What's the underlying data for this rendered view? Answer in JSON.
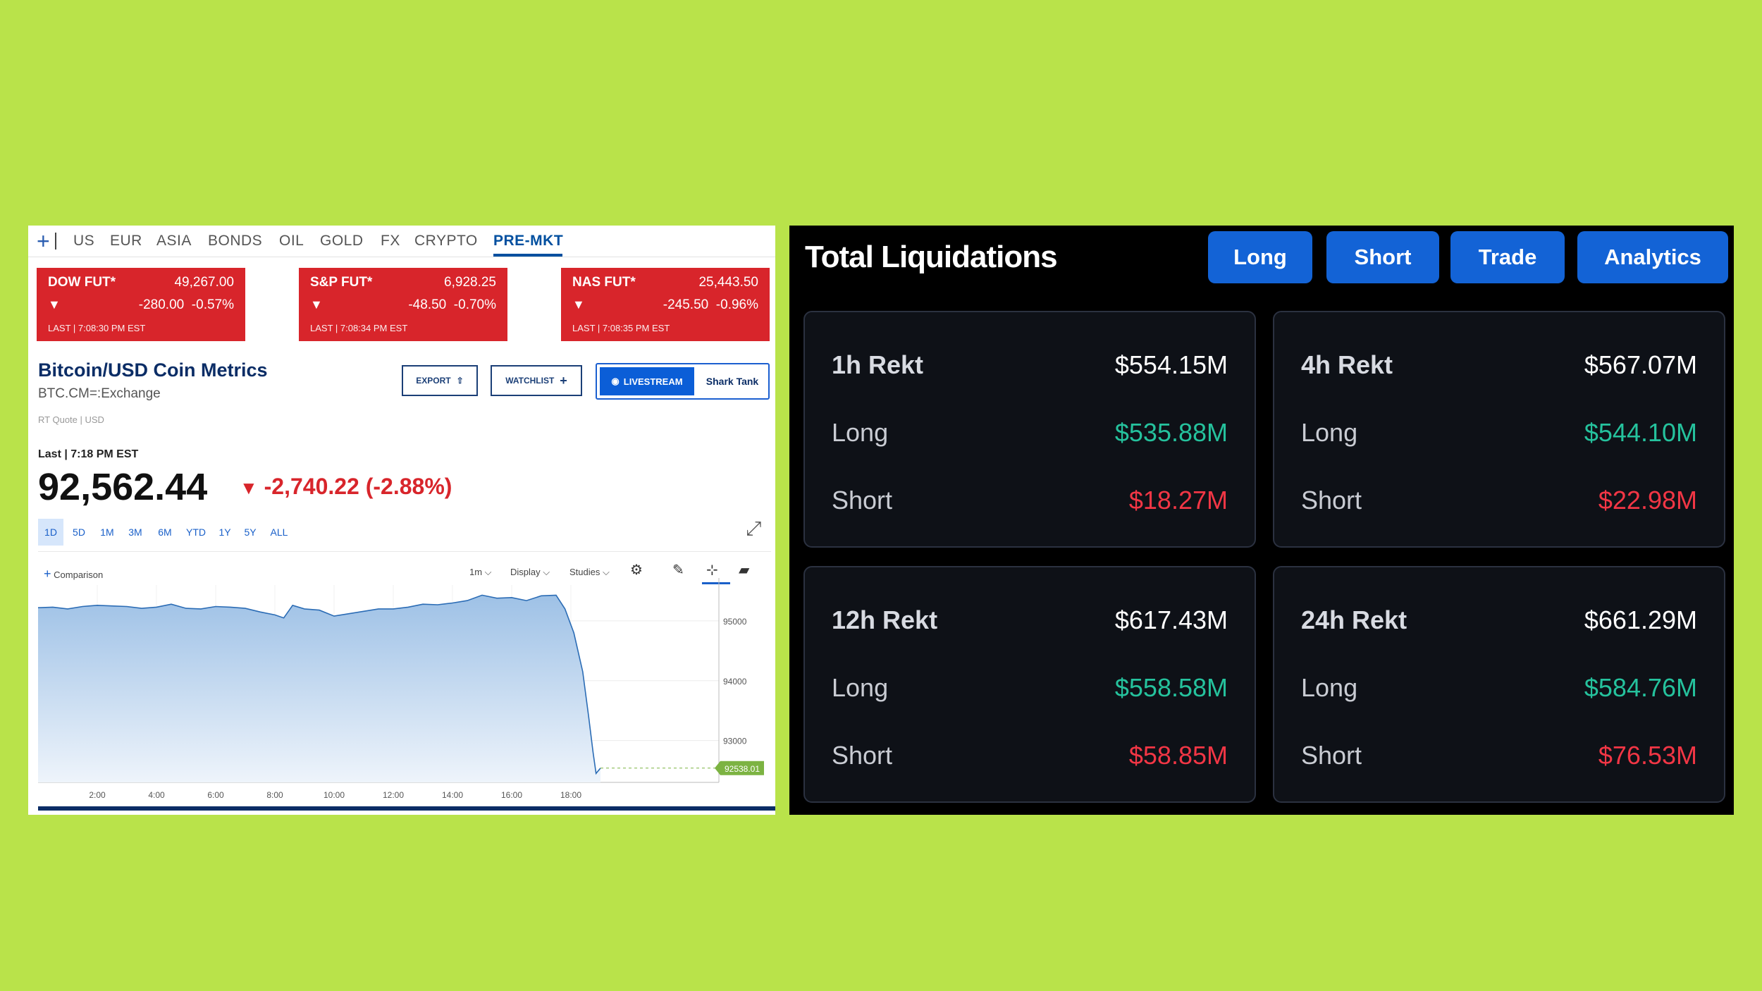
{
  "left": {
    "nav": {
      "items": [
        "US",
        "EUR",
        "ASIA",
        "BONDS",
        "OIL",
        "GOLD",
        "FX",
        "CRYPTO",
        "PRE-MKT"
      ],
      "active": "PRE-MKT"
    },
    "futures": [
      {
        "name": "DOW FUT*",
        "value": "49,267.00",
        "change": "-280.00",
        "pct": "-0.57%",
        "last": "LAST | 7:08:30 PM EST"
      },
      {
        "name": "S&P FUT*",
        "value": "6,928.25",
        "change": "-48.50",
        "pct": "-0.70%",
        "last": "LAST | 7:08:34 PM EST"
      },
      {
        "name": "NAS FUT*",
        "value": "25,443.50",
        "change": "-245.50",
        "pct": "-0.96%",
        "last": "LAST | 7:08:35 PM EST"
      }
    ],
    "quote": {
      "title": "Bitcoin/USD Coin Metrics",
      "symbol": "BTC.CM=:Exchange",
      "rt": "RT Quote | USD",
      "last_label": "Last | 7:18 PM EST",
      "price": "92,562.44",
      "change": "-2,740.22 (-2.88%)"
    },
    "buttons": {
      "export": "EXPORT",
      "watchlist": "WATCHLIST",
      "livestream": "LIVESTREAM",
      "shark": "Shark Tank"
    },
    "ranges": [
      "1D",
      "5D",
      "1M",
      "3M",
      "6M",
      "YTD",
      "1Y",
      "5Y",
      "ALL"
    ],
    "toolbar": {
      "comparison": "Comparison",
      "interval": "1m",
      "display": "Display",
      "studies": "Studies"
    },
    "colors": {
      "red": "#d8252b",
      "navy": "#0b2d66",
      "accent": "#1a60c9"
    }
  },
  "chart_data": {
    "type": "area",
    "x_ticks": [
      "2:00",
      "4:00",
      "6:00",
      "8:00",
      "10:00",
      "12:00",
      "14:00",
      "16:00",
      "18:00"
    ],
    "y_ticks": [
      "95000",
      "94000",
      "93000"
    ],
    "ylim": [
      92300,
      95600
    ],
    "last_label": "92538.01",
    "series": [
      {
        "values": [
          [
            0,
            95220
          ],
          [
            0.5,
            95230
          ],
          [
            1,
            95200
          ],
          [
            1.5,
            95240
          ],
          [
            2,
            95260
          ],
          [
            2.5,
            95250
          ],
          [
            3,
            95240
          ],
          [
            3.5,
            95210
          ],
          [
            4,
            95230
          ],
          [
            4.5,
            95280
          ],
          [
            5,
            95210
          ],
          [
            5.5,
            95200
          ],
          [
            6,
            95240
          ],
          [
            6.5,
            95230
          ],
          [
            7,
            95210
          ],
          [
            7.5,
            95150
          ],
          [
            8,
            95100
          ],
          [
            8.3,
            95050
          ],
          [
            8.6,
            95260
          ],
          [
            9,
            95200
          ],
          [
            9.5,
            95180
          ],
          [
            10,
            95080
          ],
          [
            10.5,
            95120
          ],
          [
            11,
            95160
          ],
          [
            11.5,
            95200
          ],
          [
            12,
            95200
          ],
          [
            12.5,
            95230
          ],
          [
            13,
            95280
          ],
          [
            13.5,
            95270
          ],
          [
            14,
            95300
          ],
          [
            14.5,
            95340
          ],
          [
            15,
            95430
          ],
          [
            15.5,
            95380
          ],
          [
            16,
            95390
          ],
          [
            16.5,
            95340
          ],
          [
            17,
            95420
          ],
          [
            17.5,
            95430
          ],
          [
            17.8,
            95200
          ],
          [
            18.1,
            94800
          ],
          [
            18.4,
            94150
          ],
          [
            18.6,
            93400
          ],
          [
            18.75,
            92800
          ],
          [
            18.85,
            92450
          ],
          [
            19,
            92538
          ]
        ]
      }
    ]
  },
  "right": {
    "title": "Total Liquidations",
    "tabs": [
      "Long",
      "Short",
      "Trade",
      "Analytics"
    ],
    "cards": [
      {
        "label": "1h Rekt",
        "total": "$554.15M",
        "long_label": "Long",
        "long": "$535.88M",
        "short_label": "Short",
        "short": "$18.27M"
      },
      {
        "label": "4h Rekt",
        "total": "$567.07M",
        "long_label": "Long",
        "long": "$544.10M",
        "short_label": "Short",
        "short": "$22.98M"
      },
      {
        "label": "12h Rekt",
        "total": "$617.43M",
        "long_label": "Long",
        "long": "$558.58M",
        "short_label": "Short",
        "short": "$58.85M"
      },
      {
        "label": "24h Rekt",
        "total": "$661.29M",
        "long_label": "Long",
        "long": "$584.76M",
        "short_label": "Short",
        "short": "$76.53M"
      }
    ],
    "colors": {
      "long": "#25c29d",
      "short": "#f23645",
      "button": "#1363d6"
    }
  }
}
